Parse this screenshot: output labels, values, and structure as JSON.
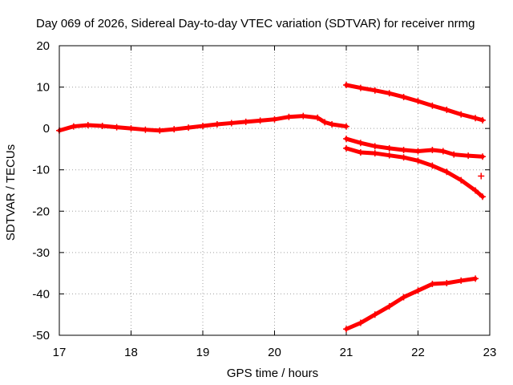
{
  "chart_data": {
    "type": "scatter",
    "title": "Day 069 of 2026, Sidereal Day-to-day VTEC variation (SDTVAR) for receiver nrmg",
    "xlabel": "GPS time / hours",
    "ylabel": "SDTVAR / TECUs",
    "xlim": [
      17,
      23
    ],
    "ylim": [
      -50,
      20
    ],
    "xticks": [
      17,
      18,
      19,
      20,
      21,
      22,
      23
    ],
    "yticks": [
      20,
      10,
      0,
      -10,
      -20,
      -30,
      -40,
      -50
    ],
    "grid": true,
    "marker": "plus",
    "color": "#ff0000",
    "series": [
      {
        "x": [
          17.0,
          17.2,
          17.4,
          17.6,
          17.8,
          18.0,
          18.2,
          18.4,
          18.6,
          18.8,
          19.0,
          19.2,
          19.4,
          19.6,
          19.8,
          20.0,
          20.2,
          20.4,
          20.6,
          20.7,
          20.8,
          21.0
        ],
        "y": [
          -0.5,
          0.5,
          0.8,
          0.6,
          0.3,
          0.0,
          -0.3,
          -0.5,
          -0.2,
          0.2,
          0.6,
          1.0,
          1.3,
          1.6,
          1.9,
          2.2,
          2.8,
          3.0,
          2.6,
          1.5,
          1.0,
          0.5
        ]
      },
      {
        "x": [
          21.0,
          21.2,
          21.4,
          21.6,
          21.8,
          22.0,
          22.2,
          22.4,
          22.6,
          22.8,
          22.9
        ],
        "y": [
          10.5,
          9.8,
          9.2,
          8.5,
          7.6,
          6.6,
          5.5,
          4.5,
          3.4,
          2.5,
          2.0
        ]
      },
      {
        "x": [
          21.0,
          21.2,
          21.4,
          21.6,
          21.8,
          22.0,
          22.2,
          22.35,
          22.5,
          22.7,
          22.9
        ],
        "y": [
          -2.5,
          -3.5,
          -4.3,
          -4.8,
          -5.2,
          -5.5,
          -5.2,
          -5.5,
          -6.3,
          -6.6,
          -6.8
        ]
      },
      {
        "x": [
          21.0,
          21.2,
          21.4,
          21.6,
          21.8,
          22.0,
          22.2,
          22.4,
          22.6,
          22.8,
          22.9
        ],
        "y": [
          -4.8,
          -5.8,
          -6.0,
          -6.5,
          -7.0,
          -7.8,
          -9.0,
          -10.5,
          -12.5,
          -15.0,
          -16.5
        ]
      },
      {
        "x": [
          22.88
        ],
        "y": [
          -11.5
        ]
      },
      {
        "x": [
          21.0,
          21.2,
          21.4,
          21.6,
          21.8,
          22.0,
          22.2,
          22.4,
          22.6,
          22.8
        ],
        "y": [
          -48.5,
          -47.0,
          -45.0,
          -43.0,
          -40.8,
          -39.2,
          -37.6,
          -37.4,
          -36.8,
          -36.3
        ]
      }
    ]
  }
}
